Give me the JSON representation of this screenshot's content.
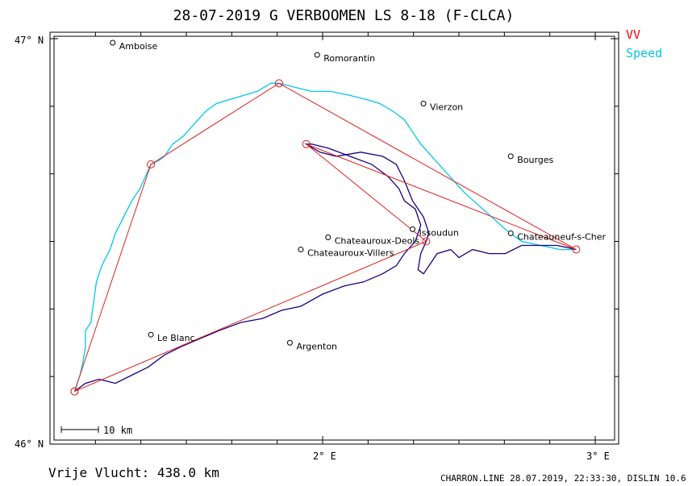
{
  "title": "28-07-2019   G VERBOOMEN   LS 8-18 (F-CLCA)",
  "legend": {
    "vv_label": "VV",
    "vv_color": "#ff0000",
    "speed_label": "Speed",
    "speed_color": "#00c8e6"
  },
  "axes": {
    "lat_top_label": "47° N",
    "lat_bottom_label": "46° N",
    "lon_2_label": "2° E",
    "lon_3_label": "3° E"
  },
  "scale_bar": {
    "label": "10 km"
  },
  "footer": {
    "distance_text": "Vrije Vlucht:  438.0 km",
    "credits": "CHARRON.LINE 28.07.2019, 22:33:30, DISLIN 10.6"
  },
  "colors": {
    "track_dark": "#1a0080",
    "track_light": "#00c8e6",
    "task": "#e02020",
    "frame": "#000000"
  },
  "cities": [
    {
      "name": "Amboise",
      "lon": 1.23,
      "lat": 46.99
    },
    {
      "name": "Romorantin",
      "lon": 1.98,
      "lat": 46.96
    },
    {
      "name": "Vierzon",
      "lon": 2.37,
      "lat": 46.84
    },
    {
      "name": "Bourges",
      "lon": 2.69,
      "lat": 46.71
    },
    {
      "name": "Issoudun",
      "lon": 2.33,
      "lat": 46.53
    },
    {
      "name": "Chateauroux-Deols",
      "lon": 2.02,
      "lat": 46.51
    },
    {
      "name": "Chateauroux-Villers",
      "lon": 1.92,
      "lat": 46.48
    },
    {
      "name": "Chateauneuf-s-Cher",
      "lon": 2.69,
      "lat": 46.52
    },
    {
      "name": "Le Blanc",
      "lon": 1.37,
      "lat": 46.27
    },
    {
      "name": "Argenton",
      "lon": 1.88,
      "lat": 46.25
    }
  ],
  "turnpoints": [
    {
      "lon": 1.09,
      "lat": 46.13
    },
    {
      "lon": 1.37,
      "lat": 46.69
    },
    {
      "lon": 1.84,
      "lat": 46.89
    },
    {
      "lon": 2.93,
      "lat": 46.48
    },
    {
      "lon": 1.94,
      "lat": 46.74
    },
    {
      "lon": 2.38,
      "lat": 46.5
    },
    {
      "lon": 1.09,
      "lat": 46.13
    }
  ],
  "track_light": [
    [
      1.09,
      46.13
    ],
    [
      1.11,
      46.17
    ],
    [
      1.12,
      46.2
    ],
    [
      1.13,
      46.24
    ],
    [
      1.13,
      46.28
    ],
    [
      1.15,
      46.3
    ],
    [
      1.16,
      46.35
    ],
    [
      1.17,
      46.4
    ],
    [
      1.19,
      46.44
    ],
    [
      1.22,
      46.48
    ],
    [
      1.24,
      46.52
    ],
    [
      1.27,
      46.56
    ],
    [
      1.3,
      46.6
    ],
    [
      1.33,
      46.63
    ],
    [
      1.37,
      46.69
    ],
    [
      1.4,
      46.7
    ],
    [
      1.42,
      46.71
    ],
    [
      1.45,
      46.74
    ],
    [
      1.49,
      46.76
    ],
    [
      1.53,
      46.79
    ],
    [
      1.57,
      46.82
    ],
    [
      1.61,
      46.84
    ],
    [
      1.66,
      46.85
    ],
    [
      1.71,
      46.86
    ],
    [
      1.76,
      46.87
    ],
    [
      1.81,
      46.89
    ],
    [
      1.84,
      46.89
    ],
    [
      1.9,
      46.88
    ],
    [
      1.96,
      46.87
    ],
    [
      2.03,
      46.87
    ],
    [
      2.1,
      46.86
    ],
    [
      2.16,
      46.85
    ],
    [
      2.21,
      46.84
    ],
    [
      2.26,
      46.82
    ],
    [
      2.3,
      46.8
    ],
    [
      2.33,
      46.77
    ],
    [
      2.36,
      46.74
    ],
    [
      2.4,
      46.71
    ],
    [
      2.44,
      46.68
    ],
    [
      2.48,
      46.65
    ],
    [
      2.52,
      46.62
    ],
    [
      2.57,
      46.59
    ],
    [
      2.62,
      46.56
    ],
    [
      2.67,
      46.53
    ],
    [
      2.73,
      46.5
    ],
    [
      2.8,
      46.49
    ],
    [
      2.87,
      46.48
    ],
    [
      2.93,
      46.48
    ]
  ],
  "track_dark": [
    [
      1.09,
      46.13
    ],
    [
      1.13,
      46.15
    ],
    [
      1.18,
      46.16
    ],
    [
      1.24,
      46.15
    ],
    [
      1.3,
      46.17
    ],
    [
      1.36,
      46.19
    ],
    [
      1.42,
      46.22
    ],
    [
      1.48,
      46.24
    ],
    [
      1.55,
      46.26
    ],
    [
      1.62,
      46.28
    ],
    [
      1.7,
      46.3
    ],
    [
      1.78,
      46.31
    ],
    [
      1.85,
      46.33
    ],
    [
      1.92,
      46.34
    ],
    [
      2.0,
      46.37
    ],
    [
      2.08,
      46.39
    ],
    [
      2.15,
      46.4
    ],
    [
      2.22,
      46.42
    ],
    [
      2.27,
      46.44
    ],
    [
      2.3,
      46.47
    ],
    [
      2.34,
      46.5
    ],
    [
      2.36,
      46.54
    ],
    [
      2.34,
      46.58
    ],
    [
      2.3,
      46.6
    ],
    [
      2.28,
      46.63
    ],
    [
      2.24,
      46.66
    ],
    [
      2.18,
      46.69
    ],
    [
      2.1,
      46.71
    ],
    [
      2.02,
      46.73
    ],
    [
      1.96,
      46.74
    ],
    [
      1.94,
      46.74
    ],
    [
      1.99,
      46.72
    ],
    [
      2.05,
      46.71
    ],
    [
      2.14,
      46.72
    ],
    [
      2.22,
      46.71
    ],
    [
      2.27,
      46.69
    ],
    [
      2.3,
      46.65
    ],
    [
      2.33,
      46.6
    ],
    [
      2.37,
      46.56
    ],
    [
      2.39,
      46.52
    ],
    [
      2.38,
      46.5
    ],
    [
      2.36,
      46.47
    ],
    [
      2.35,
      46.43
    ],
    [
      2.37,
      46.42
    ],
    [
      2.42,
      46.47
    ],
    [
      2.47,
      46.48
    ],
    [
      2.5,
      46.46
    ],
    [
      2.55,
      46.48
    ],
    [
      2.61,
      46.47
    ],
    [
      2.67,
      46.47
    ],
    [
      2.73,
      46.49
    ],
    [
      2.79,
      46.49
    ],
    [
      2.86,
      46.49
    ],
    [
      2.93,
      46.48
    ]
  ]
}
